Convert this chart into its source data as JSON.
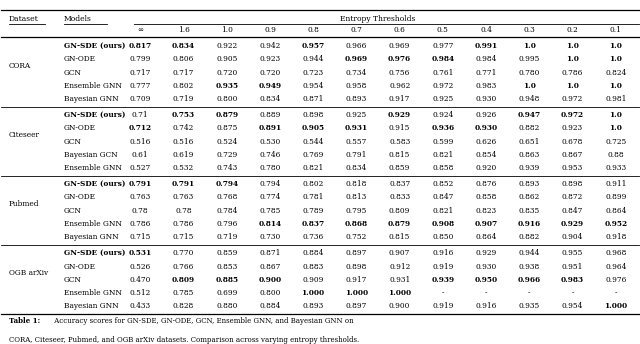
{
  "title": "Entropy Thresholds",
  "col_headers": [
    "∞",
    "1.6",
    "1.0",
    "0.9",
    "0.8",
    "0.7",
    "0.6",
    "0.5",
    "0.4",
    "0.3",
    "0.2",
    "0.1"
  ],
  "datasets": [
    "CORA",
    "Citeseer",
    "Pubmed",
    "OGB arXiv"
  ],
  "models_default": [
    "GN-SDE (ours)",
    "GN-ODE",
    "GCN",
    "Ensemble GNN",
    "Bayesian GNN"
  ],
  "citeseer_model_order": [
    "GN-SDE (ours)",
    "GN-ODE",
    "GCN",
    "Bayesian GCN",
    "Ensemble GNN"
  ],
  "data": {
    "CORA": {
      "GN-SDE (ours)": [
        "0.817",
        "0.834",
        "0.922",
        "0.942",
        "0.957",
        "0.966",
        "0.969",
        "0.977",
        "0.991",
        "1.0",
        "1.0",
        "1.0"
      ],
      "GN-ODE": [
        "0.799",
        "0.806",
        "0.905",
        "0.923",
        "0.944",
        "0.969",
        "0.976",
        "0.984",
        "0.984",
        "0.995",
        "1.0",
        "1.0"
      ],
      "GCN": [
        "0.717",
        "0.717",
        "0.720",
        "0.720",
        "0.723",
        "0.734",
        "0.756",
        "0.761",
        "0.771",
        "0.780",
        "0.786",
        "0.824"
      ],
      "Ensemble GNN": [
        "0.777",
        "0.802",
        "0.935",
        "0.949",
        "0.954",
        "0.958",
        "0.962",
        "0.972",
        "0.983",
        "1.0",
        "1.0",
        "1.0"
      ],
      "Bayesian GNN": [
        "0.709",
        "0.719",
        "0.800",
        "0.834",
        "0.871",
        "0.893",
        "0.917",
        "0.925",
        "0.930",
        "0.948",
        "0.972",
        "0.981"
      ]
    },
    "Citeseer": {
      "GN-SDE (ours)": [
        "0.71",
        "0.753",
        "0.879",
        "0.889",
        "0.898",
        "0.925",
        "0.929",
        "0.924",
        "0.926",
        "0.947",
        "0.972",
        "1.0"
      ],
      "GN-ODE": [
        "0.712",
        "0.742",
        "0.875",
        "0.891",
        "0.905",
        "0.931",
        "0.915",
        "0.936",
        "0.930",
        "0.882",
        "0.923",
        "1.0"
      ],
      "GCN": [
        "0.516",
        "0.516",
        "0.524",
        "0.530",
        "0.544",
        "0.557",
        "0.583",
        "0.599",
        "0.626",
        "0.651",
        "0.678",
        "0.725"
      ],
      "Bayesian GCN": [
        "0.61",
        "0.619",
        "0.729",
        "0.746",
        "0.769",
        "0.791",
        "0.815",
        "0.821",
        "0.854",
        "0.863",
        "0.867",
        "0.88"
      ],
      "Ensemble GNN": [
        "0.527",
        "0.532",
        "0.743",
        "0.780",
        "0.821",
        "0.834",
        "0.859",
        "0.858",
        "0.920",
        "0.939",
        "0.953",
        "0.933"
      ]
    },
    "Pubmed": {
      "GN-SDE (ours)": [
        "0.791",
        "0.791",
        "0.794",
        "0.794",
        "0.802",
        "0.818",
        "0.837",
        "0.852",
        "0.876",
        "0.893",
        "0.898",
        "0.911"
      ],
      "GN-ODE": [
        "0.763",
        "0.763",
        "0.768",
        "0.774",
        "0.781",
        "0.813",
        "0.833",
        "0.847",
        "0.858",
        "0.862",
        "0.872",
        "0.899"
      ],
      "GCN": [
        "0.78",
        "0.78",
        "0.784",
        "0.785",
        "0.789",
        "0.795",
        "0.809",
        "0.821",
        "0.823",
        "0.835",
        "0.847",
        "0.864"
      ],
      "Ensemble GNN": [
        "0.786",
        "0.786",
        "0.796",
        "0.814",
        "0.837",
        "0.868",
        "0.879",
        "0.908",
        "0.907",
        "0.916",
        "0.929",
        "0.952"
      ],
      "Bayesian GNN": [
        "0.715",
        "0.715",
        "0.719",
        "0.730",
        "0.736",
        "0.752",
        "0.815",
        "0.850",
        "0.864",
        "0.882",
        "0.904",
        "0.918"
      ]
    },
    "OGB arXiv": {
      "GN-SDE (ours)": [
        "0.531",
        "0.770",
        "0.859",
        "0.871",
        "0.884",
        "0.897",
        "0.907",
        "0.916",
        "0.929",
        "0.944",
        "0.955",
        "0.968"
      ],
      "GN-ODE": [
        "0.526",
        "0.766",
        "0.853",
        "0.867",
        "0.883",
        "0.898",
        "0.912",
        "0.919",
        "0.930",
        "0.938",
        "0.951",
        "0.964"
      ],
      "GCN": [
        "0.470",
        "0.809",
        "0.885",
        "0.900",
        "0.909",
        "0.917",
        "0.931",
        "0.939",
        "0.950",
        "0.966",
        "0.983",
        "0.976"
      ],
      "Ensemble GNN": [
        "0.512",
        "0.785",
        "0.699",
        "0.800",
        "1.000",
        "1.000",
        "1.000",
        "-",
        "-",
        "-",
        "-",
        "-"
      ],
      "Bayesian GNN": [
        "0.433",
        "0.828",
        "0.880",
        "0.884",
        "0.893",
        "0.897",
        "0.900",
        "0.919",
        "0.916",
        "0.935",
        "0.954",
        "1.000"
      ]
    }
  },
  "bold": {
    "CORA": {
      "GN-SDE (ours)": [
        true,
        true,
        false,
        false,
        true,
        false,
        false,
        false,
        true,
        true,
        true,
        true
      ],
      "GN-ODE": [
        false,
        false,
        false,
        false,
        false,
        true,
        true,
        true,
        false,
        false,
        true,
        true
      ],
      "GCN": [
        false,
        false,
        false,
        false,
        false,
        false,
        false,
        false,
        false,
        false,
        false,
        false
      ],
      "Ensemble GNN": [
        false,
        false,
        true,
        true,
        false,
        false,
        false,
        false,
        false,
        true,
        true,
        true
      ],
      "Bayesian GNN": [
        false,
        false,
        false,
        false,
        false,
        false,
        false,
        false,
        false,
        false,
        false,
        false
      ]
    },
    "Citeseer": {
      "GN-SDE (ours)": [
        false,
        true,
        true,
        false,
        false,
        false,
        true,
        false,
        false,
        true,
        true,
        true
      ],
      "GN-ODE": [
        true,
        false,
        false,
        true,
        true,
        true,
        false,
        true,
        true,
        false,
        false,
        true
      ],
      "GCN": [
        false,
        false,
        false,
        false,
        false,
        false,
        false,
        false,
        false,
        false,
        false,
        false
      ],
      "Bayesian GCN": [
        false,
        false,
        false,
        false,
        false,
        false,
        false,
        false,
        false,
        false,
        false,
        false
      ],
      "Ensemble GNN": [
        false,
        false,
        false,
        false,
        false,
        false,
        false,
        false,
        false,
        false,
        false,
        false
      ]
    },
    "Pubmed": {
      "GN-SDE (ours)": [
        true,
        true,
        true,
        false,
        false,
        false,
        false,
        false,
        false,
        false,
        false,
        false
      ],
      "GN-ODE": [
        false,
        false,
        false,
        false,
        false,
        false,
        false,
        false,
        false,
        false,
        false,
        false
      ],
      "GCN": [
        false,
        false,
        false,
        false,
        false,
        false,
        false,
        false,
        false,
        false,
        false,
        false
      ],
      "Ensemble GNN": [
        false,
        false,
        false,
        true,
        true,
        true,
        true,
        true,
        true,
        true,
        true,
        true
      ],
      "Bayesian GNN": [
        false,
        false,
        false,
        false,
        false,
        false,
        false,
        false,
        false,
        false,
        false,
        false
      ]
    },
    "OGB arXiv": {
      "GN-SDE (ours)": [
        true,
        false,
        false,
        false,
        false,
        false,
        false,
        false,
        false,
        false,
        false,
        false
      ],
      "GN-ODE": [
        false,
        false,
        false,
        false,
        false,
        false,
        false,
        false,
        false,
        false,
        false,
        false
      ],
      "GCN": [
        false,
        true,
        true,
        true,
        false,
        false,
        false,
        true,
        true,
        true,
        true,
        false
      ],
      "Ensemble GNN": [
        false,
        false,
        false,
        false,
        true,
        true,
        true,
        false,
        false,
        false,
        false,
        false
      ],
      "Bayesian GNN": [
        false,
        false,
        false,
        false,
        false,
        false,
        false,
        false,
        false,
        false,
        false,
        true
      ]
    }
  },
  "bg_color": "#ffffff"
}
